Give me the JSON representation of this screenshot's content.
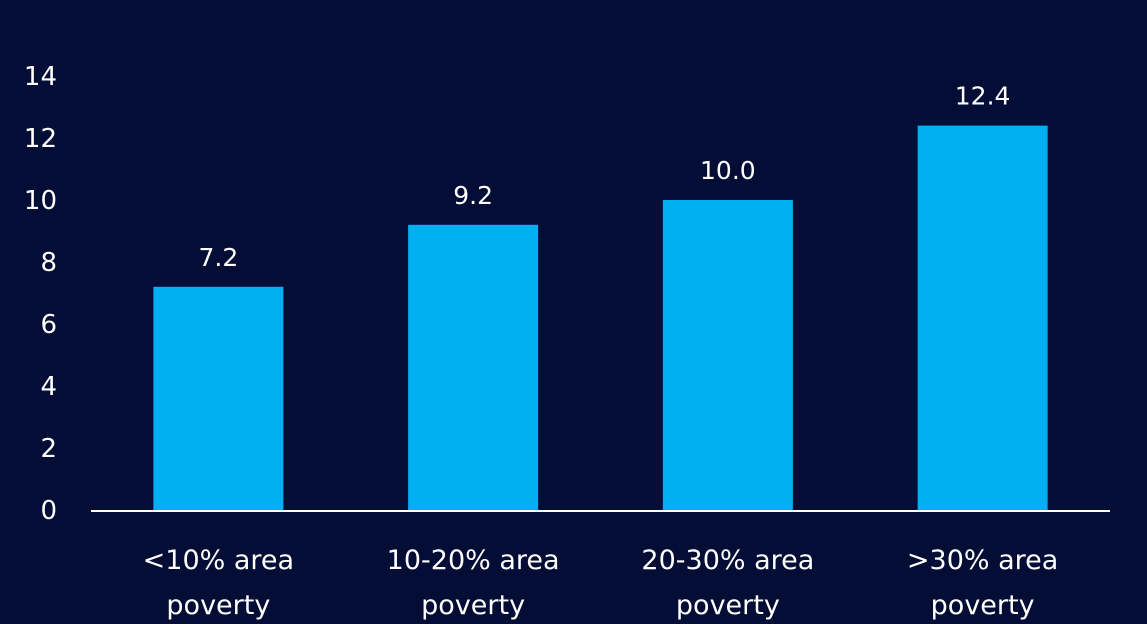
{
  "colors": {
    "background": "#040d35",
    "bar": "#00b0f0",
    "axis": "#ffffff",
    "text": "#ffffff"
  },
  "chart_data": {
    "type": "bar",
    "title": "",
    "xlabel": "",
    "ylabel": "",
    "categories": [
      [
        "<10% area",
        "poverty"
      ],
      [
        "10-20% area",
        "poverty"
      ],
      [
        "20-30% area",
        "poverty"
      ],
      [
        ">30% area",
        "poverty"
      ]
    ],
    "values": [
      7.2,
      9.2,
      10.0,
      12.4
    ],
    "data_labels": [
      "7.2",
      "9.2",
      "10.0",
      "12.4"
    ],
    "yticks": [
      0,
      2,
      4,
      6,
      8,
      10,
      12,
      14
    ],
    "ylim": [
      0,
      14
    ],
    "grid": false,
    "legend": "none"
  }
}
